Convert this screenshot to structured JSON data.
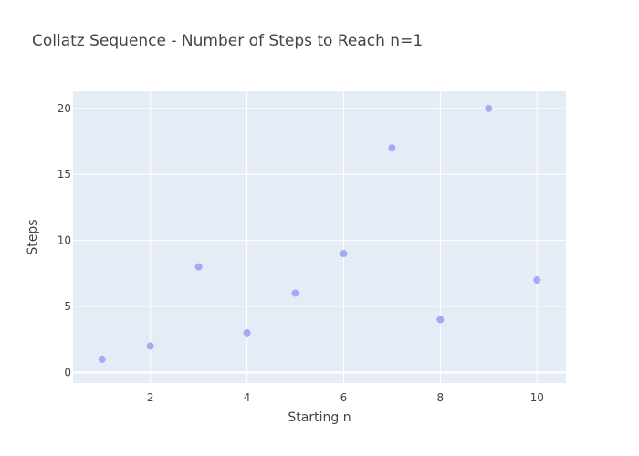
{
  "chart_data": {
    "type": "scatter",
    "title": "Collatz Sequence - Number of Steps to Reach n=1",
    "xlabel": "Starting n",
    "ylabel": "Steps",
    "x": [
      1,
      2,
      3,
      4,
      5,
      6,
      7,
      8,
      9,
      10
    ],
    "y": [
      1,
      2,
      8,
      3,
      6,
      9,
      17,
      4,
      20,
      7
    ],
    "xlim": [
      0.4,
      10.6
    ],
    "ylim": [
      -0.8,
      21.3
    ],
    "xticks": [
      2,
      4,
      6,
      8,
      10
    ],
    "yticks": [
      0,
      5,
      10,
      15,
      20
    ],
    "grid": true,
    "colors": {
      "marker": "#a3aaf5",
      "plot_background": "#e5ecf6",
      "grid": "#ffffff",
      "text": "#444444"
    }
  }
}
